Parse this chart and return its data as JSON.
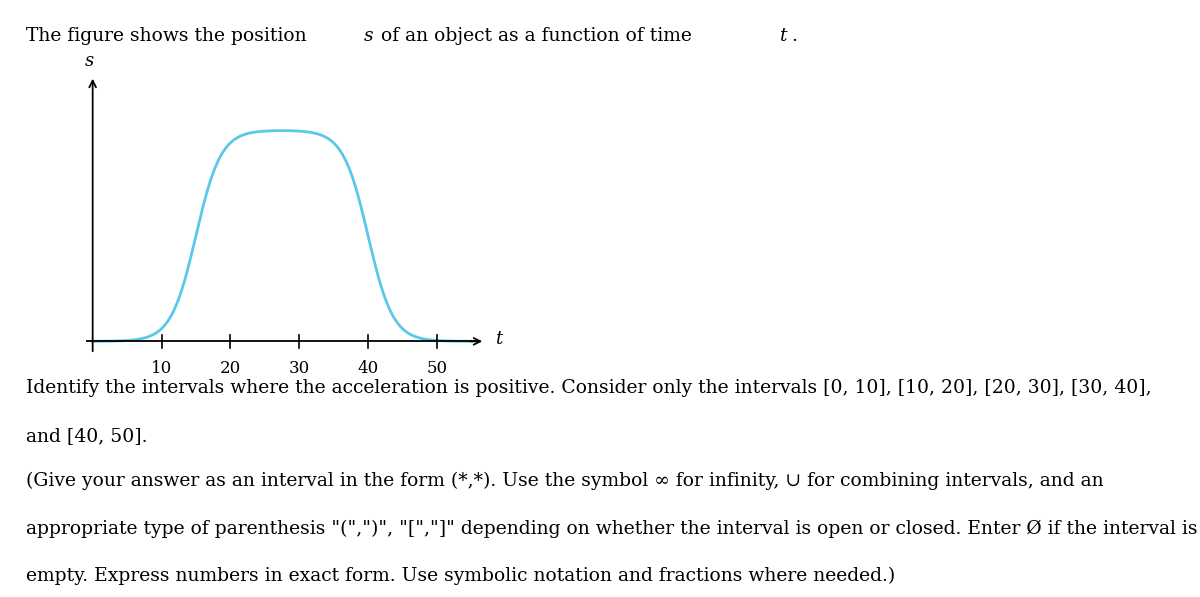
{
  "curve_color": "#5bc8e8",
  "curve_linewidth": 2.0,
  "background_color": "#ffffff",
  "x_tick_labels": [
    "10",
    "20",
    "30",
    "40",
    "50"
  ],
  "x_ticks": [
    10,
    20,
    30,
    40,
    50
  ],
  "ylabel_text": "s",
  "xlabel_text": "t",
  "p1_line1": "Identify the intervals where the acceleration is positive. Consider only the intervals [0, 10], [10, 20], [20, 30], [30, 40],",
  "p1_line2": "and [40, 50].",
  "p2_line1": "(Give your answer as an interval in the form (*,*). Use the symbol ∞ for infinity, ∪ for combining intervals, and an",
  "p2_line2": "appropriate type of parenthesis \"(\",\")\", \"[\",\"]\" depending on whether the interval is open or closed. Enter Ø if the interval is",
  "p2_line3": "empty. Express numbers in exact form. Use symbolic notation and fractions where needed.)",
  "title_pre": "The figure shows the position ",
  "title_s": "s",
  "title_mid": " of an object as a function of time ",
  "title_t": "t",
  "title_post": ".",
  "fontsize_text": 13.5,
  "fontsize_tick": 12
}
